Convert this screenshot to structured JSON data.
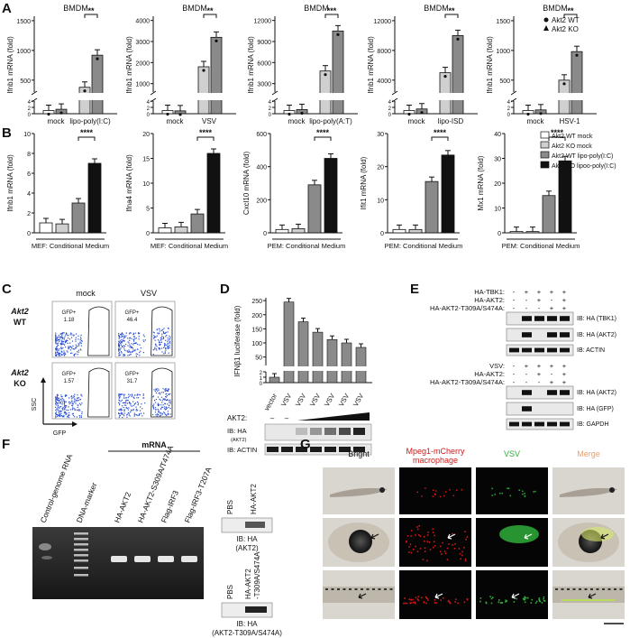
{
  "panel_letters": [
    "A",
    "B",
    "C",
    "D",
    "E",
    "F",
    "G"
  ],
  "colors": {
    "white": "#ffffff",
    "light": "#cfcfcf",
    "mid": "#8a8a8a",
    "dark": "#111111",
    "flow_dots": "#2a4fd1",
    "mcherry": "#d01818",
    "gfp": "#2fae3a"
  },
  "panelA": {
    "bmdm": "BMDM",
    "legend": [
      "Akt2 WT",
      "Akt2 KO"
    ],
    "charts": [
      {
        "ylabel": "Ifnb1 mRNA (fold)",
        "ticks_top": [
          "1500",
          "1000",
          "500"
        ],
        "ticks_bottom": [
          "4",
          "2",
          "0"
        ],
        "groups": [
          "mock",
          "lipo-poly(I:C)"
        ],
        "values": [
          1.0,
          1.4,
          380,
          920
        ],
        "sig": "**"
      },
      {
        "ylabel": "Ifnb1 mRNA (fold)",
        "ticks_top": [
          "4000",
          "3000",
          "2000",
          "1000"
        ],
        "ticks_bottom": [
          "4",
          "2",
          "0"
        ],
        "groups": [
          "mock",
          "VSV"
        ],
        "values": [
          1.0,
          0.9,
          1800,
          3200
        ],
        "sig": "**"
      },
      {
        "ylabel": "Ifnb1 mRNA (fold)",
        "ticks_top": [
          "12000",
          "9000",
          "6000",
          "3000"
        ],
        "ticks_bottom": [
          "4",
          "2",
          "0"
        ],
        "groups": [
          "mock",
          "lipo-poly(A:T)"
        ],
        "values": [
          1.0,
          1.3,
          4800,
          10500
        ],
        "sig": "***"
      },
      {
        "ylabel": "Ifnb1 mRNA (fold)",
        "ticks_top": [
          "12000",
          "8000",
          "4000"
        ],
        "ticks_bottom": [
          "4",
          "2",
          "0"
        ],
        "groups": [
          "mock",
          "lipo-ISD"
        ],
        "values": [
          1.0,
          1.5,
          5000,
          10000
        ],
        "sig": "**"
      },
      {
        "ylabel": "Ifnb1 mRNA (fold)",
        "ticks_top": [
          "1500",
          "1000",
          "500"
        ],
        "ticks_bottom": [
          "4",
          "2",
          "0"
        ],
        "groups": [
          "mock",
          "HSV-1"
        ],
        "values": [
          1.0,
          1.2,
          500,
          980
        ],
        "sig": "**"
      }
    ]
  },
  "panelB": {
    "legend": [
      "Akt2 WT mock",
      "Akt2 KO mock",
      "Akt2 WT lipo-poly(I:C)",
      "Akt2 KO lipoo-poly(I:C)"
    ],
    "charts": [
      {
        "ylabel": "Ifnb1 mRNA (fold)",
        "ticks": [
          "0",
          "2",
          "4",
          "6",
          "8",
          "10"
        ],
        "xlabel": "MEF: Conditional Medium",
        "values": [
          1.0,
          0.9,
          3.0,
          7.0
        ],
        "sig": "****"
      },
      {
        "ylabel": "Ifna4 mRNA (fold)",
        "ticks": [
          "0",
          "5",
          "10",
          "15",
          "20"
        ],
        "xlabel": "MEF: Conditional Medium",
        "values": [
          1.0,
          1.2,
          3.8,
          16.0
        ],
        "sig": "****"
      },
      {
        "ylabel": "Cxcl10 mRNA (fold)",
        "ticks": [
          "0",
          "200",
          "400",
          "600"
        ],
        "xlabel": "PEM: Conditional Medium",
        "values": [
          20,
          25,
          290,
          450
        ],
        "sig": "****"
      },
      {
        "ylabel": "Ifit1 mRNA (fold)",
        "ticks": [
          "0",
          "10",
          "20",
          "30"
        ],
        "xlabel": "PEM: Conditional Medium",
        "values": [
          1.0,
          1.0,
          15.5,
          23.5
        ],
        "sig": "****"
      },
      {
        "ylabel": "Mx1 mRNA (fold)",
        "ticks": [
          "0",
          "10",
          "20",
          "30",
          "40"
        ],
        "xlabel": "PEM: Conditional Medium",
        "values": [
          0.5,
          0.5,
          15,
          29
        ],
        "sig": "****"
      }
    ]
  },
  "panelC": {
    "cols": [
      "mock",
      "VSV"
    ],
    "rows": [
      "Akt2\nWT",
      "Akt2\nKO"
    ],
    "gate": "GFP+",
    "values": [
      "1.18",
      "46.4",
      "1.57",
      "31.7"
    ],
    "yaxis": "SSC",
    "xaxis": "GFP"
  },
  "panelD": {
    "ylabel": "IFNβ1 luciferase (fold)",
    "ticks_top": [
      "250",
      "200",
      "150",
      "100",
      "50"
    ],
    "ticks_bottom": [
      "2",
      "1",
      "0"
    ],
    "categories": [
      "vector",
      "VSV",
      "VSV",
      "VSV",
      "VSV",
      "VSV",
      "VSV"
    ],
    "values": [
      1,
      245,
      175,
      138,
      112,
      100,
      84
    ],
    "akt2": "AKT2:",
    "dash1": "–",
    "dash2": "–",
    "ib_ha": "IB: HA",
    "ib_ha_sub": "(AKT2)",
    "ib_actin": "IB: ACTIN"
  },
  "panelE": {
    "top_rows": [
      "HA-TBK1:",
      "HA-AKT2:",
      "HA-AKT2-T309A/S474A:"
    ],
    "top_signs": [
      [
        "-",
        "+",
        "+",
        "+",
        "+"
      ],
      [
        "-",
        "-",
        "+",
        "-",
        "+"
      ],
      [
        "-",
        "-",
        "-",
        "+",
        "+"
      ]
    ],
    "top_blots": [
      "IB: HA (TBK1)",
      "IB: HA (AKT2)",
      "IB: ACTIN"
    ],
    "bot_rows": [
      "VSV:",
      "HA-AKT2:",
      "HA-AKT2-T309A/S474A:"
    ],
    "bot_signs": [
      [
        "-",
        "+",
        "+",
        "+",
        "+"
      ],
      [
        "-",
        "-",
        "+",
        "-",
        "+"
      ],
      [
        "-",
        "-",
        "-",
        "+",
        "+"
      ]
    ],
    "bot_blots": [
      "IB: HA (AKT2)",
      "IB: HA (GFP)",
      "IB: GAPDH"
    ]
  },
  "panelF": {
    "lanes": [
      "Control-genome RNA",
      "DNA-marker",
      "HA-AKT2",
      "HA-AKT2-S309A/T474A",
      "Flag-IRF3",
      "Flag-IRF3-T207A"
    ],
    "mrna": "mRNA",
    "blot1": {
      "cols": [
        "PBS",
        "HA-AKT2"
      ],
      "caption": [
        "IB: HA",
        "(AKT2)"
      ]
    },
    "blot2": {
      "cols": [
        "PBS",
        "HA-AKT2\n-T309A/S474A"
      ],
      "caption": [
        "IB: HA",
        "(AKT2-T309A/S474A)"
      ]
    }
  },
  "panelG": {
    "cols": [
      "Bright",
      "Mpeg1-mCherry\nmacrophage",
      "VSV",
      "Merge"
    ]
  }
}
